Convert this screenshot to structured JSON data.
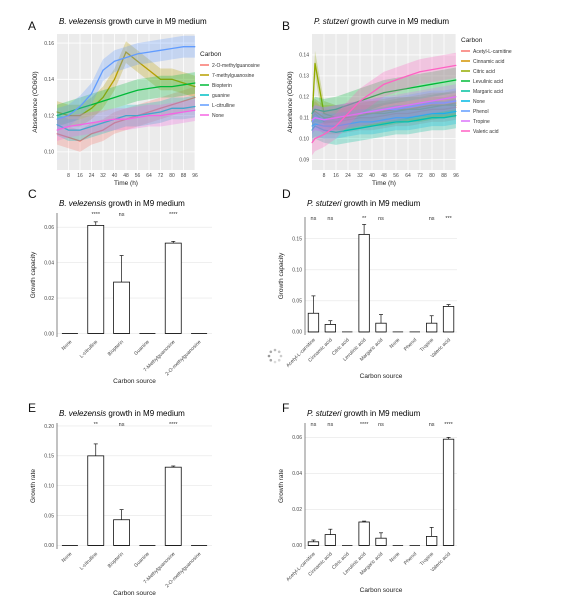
{
  "chart_data": [
    {
      "panel": "A",
      "type": "line",
      "title_species": "B. velezensis",
      "title_rest": " growth curve in M9 medium",
      "xlabel": "Time (h)",
      "ylabel": "Absorbance (OD600)",
      "xlim": [
        0,
        96
      ],
      "ylim": [
        0.09,
        0.165
      ],
      "x_ticks": [
        8,
        16,
        24,
        32,
        40,
        48,
        56,
        64,
        72,
        80,
        88,
        96
      ],
      "y_ticks": [
        0.1,
        0.12,
        0.14,
        0.16
      ],
      "legend_title": "Carbon",
      "legend_position": "right",
      "x": [
        0,
        8,
        16,
        24,
        32,
        40,
        48,
        56,
        64,
        72,
        80,
        88,
        96
      ],
      "series": [
        {
          "name": "2-O-methylguanosine",
          "color": "#f8766d",
          "values": [
            0.11,
            0.108,
            0.106,
            0.11,
            0.112,
            0.116,
            0.118,
            0.12,
            0.122,
            0.124,
            0.126,
            0.128,
            0.13
          ]
        },
        {
          "name": "7-methylguanosine",
          "color": "#b79f00",
          "values": [
            0.122,
            0.12,
            0.12,
            0.124,
            0.13,
            0.14,
            0.155,
            0.15,
            0.145,
            0.14,
            0.14,
            0.138,
            0.136
          ]
        },
        {
          "name": "Biopterin",
          "color": "#00ba38",
          "values": [
            0.12,
            0.122,
            0.124,
            0.126,
            0.128,
            0.13,
            0.132,
            0.134,
            0.135,
            0.136,
            0.136,
            0.137,
            0.138
          ]
        },
        {
          "name": "guanine",
          "color": "#00bfc4",
          "values": [
            0.115,
            0.112,
            0.112,
            0.114,
            0.116,
            0.118,
            0.12,
            0.12,
            0.121,
            0.122,
            0.124,
            0.124,
            0.125
          ]
        },
        {
          "name": "L-citrulline",
          "color": "#619cff",
          "values": [
            0.118,
            0.12,
            0.125,
            0.132,
            0.145,
            0.15,
            0.152,
            0.154,
            0.155,
            0.156,
            0.157,
            0.158,
            0.158
          ]
        },
        {
          "name": "None",
          "color": "#f564e3",
          "values": [
            0.112,
            0.114,
            0.115,
            0.116,
            0.117,
            0.118,
            0.118,
            0.119,
            0.12,
            0.12,
            0.121,
            0.122,
            0.123
          ]
        }
      ]
    },
    {
      "panel": "B",
      "type": "line",
      "title_species": "P. stutzeri",
      "title_rest": " growth curve in M9 medium",
      "xlabel": "Time (h)",
      "ylabel": "Absorbance (OD600)",
      "xlim": [
        0,
        96
      ],
      "ylim": [
        0.085,
        0.15
      ],
      "x_ticks": [
        8,
        16,
        24,
        32,
        40,
        48,
        56,
        64,
        72,
        80,
        88,
        96
      ],
      "y_ticks": [
        0.09,
        0.1,
        0.11,
        0.12,
        0.13,
        0.14
      ],
      "legend_title": "Carbon",
      "legend_position": "right",
      "x": [
        0,
        2,
        8,
        16,
        24,
        32,
        40,
        48,
        56,
        64,
        72,
        80,
        88,
        96
      ],
      "series": [
        {
          "name": "Acetyl-L-carnitine",
          "color": "#f8766d",
          "values": [
            0.11,
            0.112,
            0.108,
            0.108,
            0.109,
            0.11,
            0.11,
            0.111,
            0.112,
            0.112,
            0.113,
            0.114,
            0.114,
            0.115
          ]
        },
        {
          "name": "Cinnamic acid",
          "color": "#d39200",
          "values": [
            0.112,
            0.113,
            0.11,
            0.11,
            0.111,
            0.112,
            0.112,
            0.113,
            0.114,
            0.114,
            0.115,
            0.116,
            0.116,
            0.117
          ]
        },
        {
          "name": "Citric acid",
          "color": "#93aa00",
          "values": [
            0.108,
            0.136,
            0.112,
            0.11,
            0.11,
            0.111,
            0.112,
            0.112,
            0.113,
            0.114,
            0.114,
            0.115,
            0.116,
            0.116
          ]
        },
        {
          "name": "Levulinic acid",
          "color": "#00ba38",
          "values": [
            0.112,
            0.114,
            0.113,
            0.114,
            0.116,
            0.118,
            0.12,
            0.122,
            0.123,
            0.124,
            0.125,
            0.126,
            0.127,
            0.128
          ]
        },
        {
          "name": "Margaric acid",
          "color": "#00c19f",
          "values": [
            0.104,
            0.106,
            0.104,
            0.103,
            0.104,
            0.105,
            0.106,
            0.107,
            0.108,
            0.108,
            0.109,
            0.11,
            0.11,
            0.111
          ]
        },
        {
          "name": "None",
          "color": "#00b9e3",
          "values": [
            0.106,
            0.107,
            0.106,
            0.106,
            0.107,
            0.108,
            0.108,
            0.109,
            0.11,
            0.11,
            0.111,
            0.112,
            0.112,
            0.113
          ]
        },
        {
          "name": "Phenol",
          "color": "#619cff",
          "values": [
            0.108,
            0.11,
            0.109,
            0.11,
            0.111,
            0.112,
            0.113,
            0.114,
            0.114,
            0.115,
            0.116,
            0.117,
            0.117,
            0.118
          ]
        },
        {
          "name": "Tropine",
          "color": "#db72fb",
          "values": [
            0.109,
            0.11,
            0.109,
            0.11,
            0.111,
            0.112,
            0.113,
            0.114,
            0.115,
            0.116,
            0.117,
            0.118,
            0.119,
            0.12
          ]
        },
        {
          "name": "Valeric acid",
          "color": "#ff61c3",
          "values": [
            0.098,
            0.1,
            0.102,
            0.106,
            0.112,
            0.118,
            0.122,
            0.126,
            0.128,
            0.13,
            0.132,
            0.133,
            0.134,
            0.135
          ]
        }
      ]
    },
    {
      "panel": "C",
      "type": "bar",
      "title_species": "B. velezensis",
      "title_rest": " growth in M9 medium",
      "xlabel": "Carbon source",
      "ylabel": "Growth capacity",
      "ylim": [
        -0.002,
        0.068
      ],
      "y_ticks": [
        0.0,
        0.02,
        0.04,
        0.06
      ],
      "categories": [
        "None",
        "L-citrulline",
        "Biopterin",
        "Guanine",
        "7-Methylguanosine",
        "2-O-methylguanosine"
      ],
      "values": [
        0.0,
        0.061,
        0.029,
        0.0,
        0.051,
        0.0
      ],
      "errors": [
        0.0,
        0.002,
        0.015,
        0.0,
        0.001,
        0.0
      ],
      "significance": [
        "",
        "****",
        "ns",
        "",
        "****",
        ""
      ]
    },
    {
      "panel": "D",
      "type": "bar",
      "title_species": "P. stutzeri",
      "title_rest": " growth in M9 medium",
      "xlabel": "Carbon source",
      "ylabel": "Growth capacity",
      "ylim": [
        -0.005,
        0.185
      ],
      "y_ticks": [
        0.0,
        0.05,
        0.1,
        0.15
      ],
      "categories": [
        "Acetyl-L-carnitine",
        "Cinnamic acid",
        "Citric acid",
        "Levulinic acid",
        "Margaric acid",
        "None",
        "Phenol",
        "Tropine",
        "Valeric acid"
      ],
      "values": [
        0.03,
        0.012,
        0.0,
        0.157,
        0.014,
        0.0,
        0.0,
        0.014,
        0.041
      ],
      "errors": [
        0.028,
        0.006,
        0.0,
        0.016,
        0.014,
        0.0,
        0.0,
        0.012,
        0.003
      ],
      "significance": [
        "ns",
        "ns",
        "",
        "**",
        "ns",
        "",
        "",
        "ns",
        "***"
      ]
    },
    {
      "panel": "E",
      "type": "bar",
      "title_species": "B. velezensis",
      "title_rest": " growth in M9 medium",
      "xlabel": "Carbon source",
      "ylabel": "Growth rate",
      "ylim": [
        -0.006,
        0.205
      ],
      "y_ticks": [
        0.0,
        0.05,
        0.1,
        0.15,
        0.2
      ],
      "categories": [
        "None",
        "L-citrulline",
        "Biopterin",
        "Guanine",
        "7-Methylguanosine",
        "2-O-methylguanosine"
      ],
      "values": [
        0.0,
        0.15,
        0.043,
        0.0,
        0.131,
        0.0
      ],
      "errors": [
        0.0,
        0.02,
        0.017,
        0.0,
        0.002,
        0.0
      ],
      "significance": [
        "",
        "**",
        "ns",
        "",
        "****",
        ""
      ]
    },
    {
      "panel": "F",
      "type": "bar",
      "title_species": "P. stutzeri",
      "title_rest": " growth in M9 medium",
      "xlabel": "Carbon source",
      "ylabel": "Growth rate",
      "ylim": [
        -0.002,
        0.068
      ],
      "y_ticks": [
        0.0,
        0.02,
        0.04,
        0.06
      ],
      "categories": [
        "Acetyl-L-carnitine",
        "Cinnamic acid",
        "Citric acid",
        "Levulinic acid",
        "Margaric acid",
        "None",
        "Phenol",
        "Tropine",
        "Valeric acid"
      ],
      "values": [
        0.002,
        0.006,
        0.0,
        0.013,
        0.004,
        0.0,
        0.0,
        0.005,
        0.059
      ],
      "errors": [
        0.001,
        0.003,
        0.0,
        0.0005,
        0.003,
        0.0,
        0.0,
        0.005,
        0.001
      ],
      "significance": [
        "ns",
        "ns",
        "",
        "****",
        "ns",
        "",
        "",
        "ns",
        "****"
      ]
    }
  ]
}
